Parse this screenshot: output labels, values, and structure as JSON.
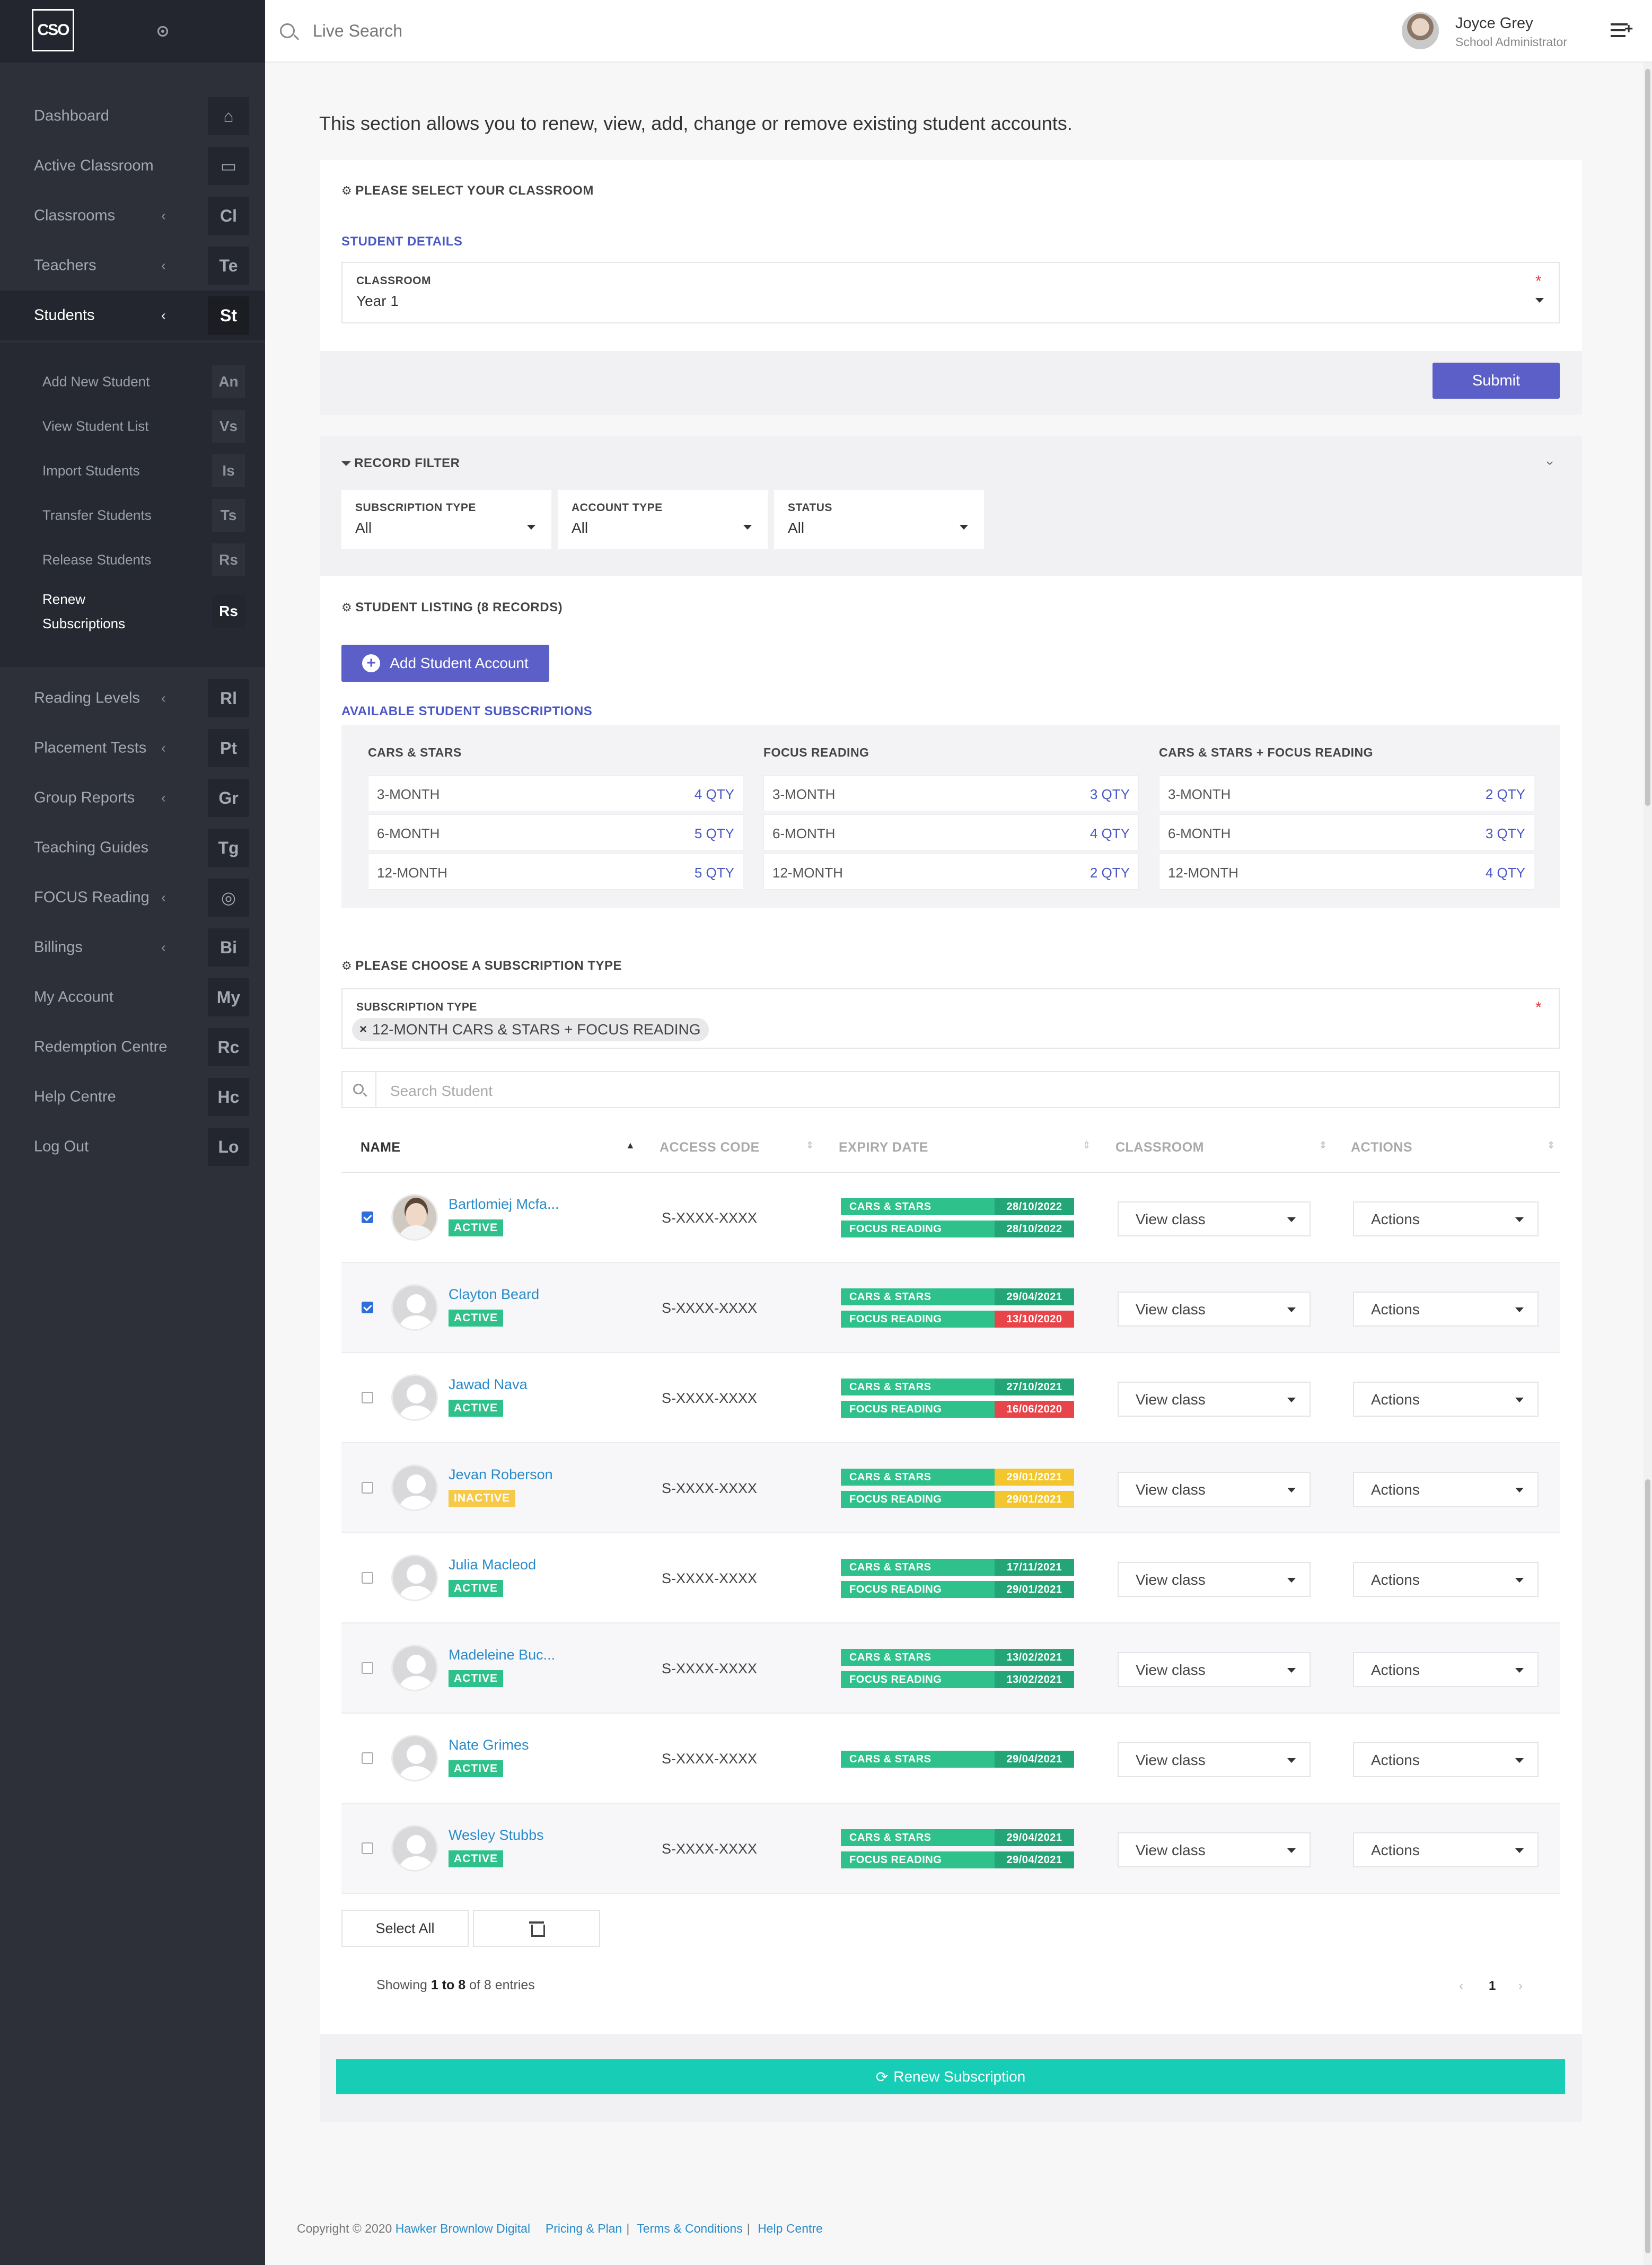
{
  "logo": "CSO",
  "sidebar": {
    "menu": [
      {
        "label": "Dashboard",
        "abbr": "⌂",
        "chevron": ""
      },
      {
        "label": "Active Classroom",
        "abbr": "▭",
        "chevron": ""
      },
      {
        "label": "Classrooms",
        "abbr": "Cl",
        "chevron": "‹"
      },
      {
        "label": "Teachers",
        "abbr": "Te",
        "chevron": "‹"
      },
      {
        "label": "Students",
        "abbr": "St",
        "chevron": "‹"
      }
    ],
    "submenu": [
      {
        "label": "Add New Student",
        "abbr": "An"
      },
      {
        "label": "View Student List",
        "abbr": "Vs"
      },
      {
        "label": "Import Students",
        "abbr": "Is"
      },
      {
        "label": "Transfer Students",
        "abbr": "Ts"
      },
      {
        "label": "Release Students",
        "abbr": "Rs"
      },
      {
        "label": "Renew Subscriptions",
        "abbr": "Rs"
      }
    ],
    "menu2": [
      {
        "label": "Reading Levels",
        "abbr": "Rl",
        "chevron": "‹"
      },
      {
        "label": "Placement Tests",
        "abbr": "Pt",
        "chevron": "‹"
      },
      {
        "label": "Group Reports",
        "abbr": "Gr",
        "chevron": "‹"
      },
      {
        "label": "Teaching Guides",
        "abbr": "Tg",
        "chevron": ""
      },
      {
        "label": "FOCUS Reading",
        "abbr": "◎",
        "chevron": "‹"
      },
      {
        "label": "Billings",
        "abbr": "Bi",
        "chevron": "‹"
      },
      {
        "label": "My Account",
        "abbr": "My",
        "chevron": ""
      },
      {
        "label": "Redemption Centre",
        "abbr": "Rc",
        "chevron": ""
      },
      {
        "label": "Help Centre",
        "abbr": "Hc",
        "chevron": ""
      },
      {
        "label": "Log Out",
        "abbr": "Lo",
        "chevron": ""
      }
    ]
  },
  "header": {
    "search_placeholder": "Live Search",
    "user_name": "Joyce Grey",
    "user_role": "School Administrator"
  },
  "intro": "This section allows you to renew, view, add, change or remove existing student accounts.",
  "classroom_section": {
    "title": "PLEASE SELECT YOUR CLASSROOM",
    "subtitle": "STUDENT DETAILS",
    "field_label": "CLASSROOM",
    "field_value": "Year 1",
    "required": "*",
    "submit": "Submit"
  },
  "filter": {
    "title": "RECORD FILTER",
    "fields": [
      {
        "label": "SUBSCRIPTION TYPE",
        "value": "All"
      },
      {
        "label": "ACCOUNT TYPE",
        "value": "All"
      },
      {
        "label": "STATUS",
        "value": "All"
      }
    ]
  },
  "listing": {
    "title": "STUDENT LISTING (8 RECORDS)",
    "add_button": "Add Student Account",
    "available_title": "AVAILABLE STUDENT SUBSCRIPTIONS",
    "plans": [
      {
        "name": "CARS & STARS",
        "rows": [
          {
            "l": "3-MONTH",
            "r": "4 QTY"
          },
          {
            "l": "6-MONTH",
            "r": "5 QTY"
          },
          {
            "l": "12-MONTH",
            "r": "5 QTY"
          }
        ]
      },
      {
        "name": "FOCUS READING",
        "rows": [
          {
            "l": "3-MONTH",
            "r": "3 QTY"
          },
          {
            "l": "6-MONTH",
            "r": "4 QTY"
          },
          {
            "l": "12-MONTH",
            "r": "2 QTY"
          }
        ]
      },
      {
        "name": "CARS & STARS + FOCUS READING",
        "rows": [
          {
            "l": "3-MONTH",
            "r": "2 QTY"
          },
          {
            "l": "6-MONTH",
            "r": "3 QTY"
          },
          {
            "l": "12-MONTH",
            "r": "4 QTY"
          }
        ]
      }
    ]
  },
  "subscription": {
    "title": "PLEASE CHOOSE A SUBSCRIPTION TYPE",
    "label": "SUBSCRIPTION TYPE",
    "chip": "12-MONTH CARS & STARS + FOCUS READING",
    "required": "*"
  },
  "table": {
    "search_placeholder": "Search Student",
    "headers": [
      "NAME",
      "ACCESS CODE",
      "EXPIRY DATE",
      "CLASSROOM",
      "ACTIONS"
    ],
    "rows": [
      {
        "name": "Bartlomiej Mcfa...",
        "status": "ACTIVE",
        "code": "S-XXXX-XXXX",
        "checked": true,
        "photo": true,
        "exp": [
          {
            "n": "CARS & STARS",
            "d": "28/10/2022",
            "c": "green"
          },
          {
            "n": "FOCUS READING",
            "d": "28/10/2022",
            "c": "green"
          }
        ],
        "classroom": "View class",
        "actions": "Actions"
      },
      {
        "name": "Clayton Beard",
        "status": "ACTIVE",
        "code": "S-XXXX-XXXX",
        "checked": true,
        "photo": false,
        "exp": [
          {
            "n": "CARS & STARS",
            "d": "29/04/2021",
            "c": "green"
          },
          {
            "n": "FOCUS READING",
            "d": "13/10/2020",
            "c": "red"
          }
        ],
        "classroom": "View class",
        "actions": "Actions"
      },
      {
        "name": "Jawad Nava",
        "status": "ACTIVE",
        "code": "S-XXXX-XXXX",
        "checked": false,
        "photo": false,
        "exp": [
          {
            "n": "CARS & STARS",
            "d": "27/10/2021",
            "c": "green"
          },
          {
            "n": "FOCUS READING",
            "d": "16/06/2020",
            "c": "red"
          }
        ],
        "classroom": "View class",
        "actions": "Actions"
      },
      {
        "name": "Jevan Roberson",
        "status": "INACTIVE",
        "code": "S-XXXX-XXXX",
        "checked": false,
        "photo": false,
        "exp": [
          {
            "n": "CARS & STARS",
            "d": "29/01/2021",
            "c": "yellow"
          },
          {
            "n": "FOCUS READING",
            "d": "29/01/2021",
            "c": "yellow"
          }
        ],
        "classroom": "View class",
        "actions": "Actions"
      },
      {
        "name": "Julia Macleod",
        "status": "ACTIVE",
        "code": "S-XXXX-XXXX",
        "checked": false,
        "photo": false,
        "exp": [
          {
            "n": "CARS & STARS",
            "d": "17/11/2021",
            "c": "green"
          },
          {
            "n": "FOCUS READING",
            "d": "29/01/2021",
            "c": "green"
          }
        ],
        "classroom": "View class",
        "actions": "Actions"
      },
      {
        "name": "Madeleine Buc...",
        "status": "ACTIVE",
        "code": "S-XXXX-XXXX",
        "checked": false,
        "photo": false,
        "exp": [
          {
            "n": "CARS & STARS",
            "d": "13/02/2021",
            "c": "green"
          },
          {
            "n": "FOCUS READING",
            "d": "13/02/2021",
            "c": "green"
          }
        ],
        "classroom": "View class",
        "actions": "Actions"
      },
      {
        "name": "Nate Grimes",
        "status": "ACTIVE",
        "code": "S-XXXX-XXXX",
        "checked": false,
        "photo": false,
        "exp": [
          {
            "n": "CARS & STARS",
            "d": "29/04/2021",
            "c": "green"
          }
        ],
        "classroom": "View class",
        "actions": "Actions"
      },
      {
        "name": "Wesley Stubbs",
        "status": "ACTIVE",
        "code": "S-XXXX-XXXX",
        "checked": false,
        "photo": false,
        "exp": [
          {
            "n": "CARS & STARS",
            "d": "29/04/2021",
            "c": "green"
          },
          {
            "n": "FOCUS READING",
            "d": "29/04/2021",
            "c": "green"
          }
        ],
        "classroom": "View class",
        "actions": "Actions"
      }
    ],
    "select_all": "Select All",
    "showing_prefix": "Showing ",
    "showing_range": "1 to 8",
    "showing_suffix": " of 8 entries",
    "page_prev": "‹",
    "page_current": "1",
    "page_next": "›"
  },
  "renew_button": "Renew Subscription",
  "footer": {
    "copyright": "Copyright © 2020 ",
    "company": "Hawker Brownlow Digital",
    "links": [
      "Pricing & Plan",
      "Terms & Conditions",
      "Help Centre"
    ],
    "separator": "|"
  },
  "colors": {
    "sidebar": "#2d3039",
    "primary": "#5b5fc7",
    "teal": "#17cdb6",
    "active": "#2fc18c",
    "expired": "#e8454a",
    "warning": "#f3c52f"
  }
}
